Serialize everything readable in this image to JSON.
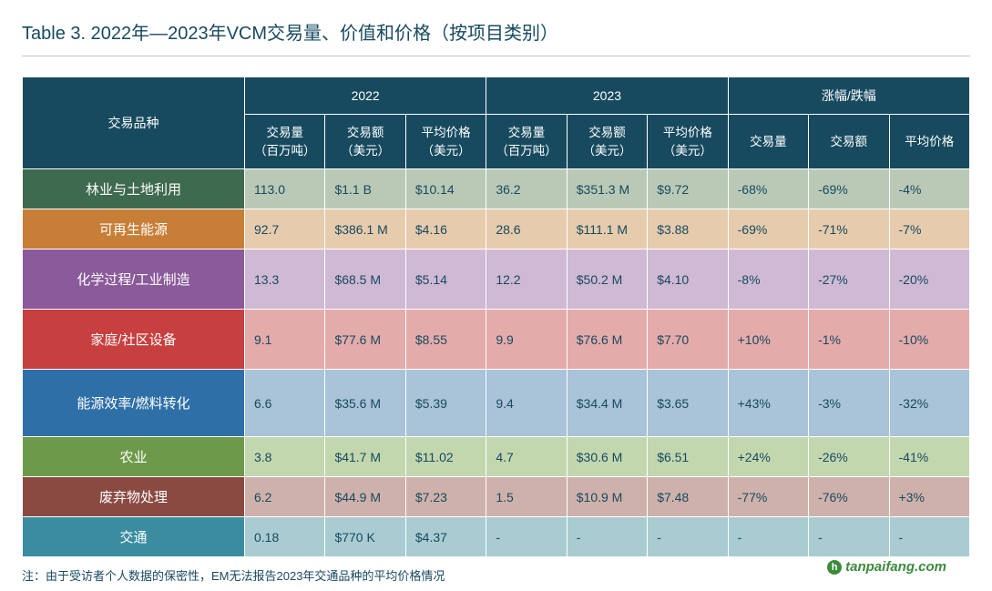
{
  "title": "Table 3. 2022年—2023年VCM交易量、价值和价格（按项目类别）",
  "header": {
    "groups": {
      "g2022": "2022",
      "g2023": "2023",
      "change": "涨幅/跌幅"
    },
    "category_label": "交易品种",
    "sub": {
      "vol_full": "交易量\n（百万吨）",
      "val_full": "交易额\n（美元）",
      "price_full": "平均价格\n（美元）",
      "vol": "交易量",
      "val": "交易额",
      "price": "平均价格"
    }
  },
  "rows": [
    {
      "cat": "林业与土地利用",
      "cat_bg": "#3e6a4f",
      "data_bg": "#b9c9b6",
      "height": "normal",
      "v22_vol": "113.0",
      "v22_val": "$1.1 B",
      "v22_price": "$10.14",
      "v23_vol": "36.2",
      "v23_val": "$351.3 M",
      "v23_price": "$9.72",
      "d_vol": "-68%",
      "d_val": "-69%",
      "d_price": "-4%"
    },
    {
      "cat": "可再生能源",
      "cat_bg": "#c77e36",
      "data_bg": "#e6cbad",
      "height": "normal",
      "v22_vol": "92.7",
      "v22_val": "$386.1 M",
      "v22_price": "$4.16",
      "v23_vol": "28.6",
      "v23_val": "$111.1 M",
      "v23_price": "$3.88",
      "d_vol": "-69%",
      "d_val": "-71%",
      "d_price": "-7%"
    },
    {
      "cat": "化学过程/工业制造",
      "cat_bg": "#8a5a9a",
      "data_bg": "#cfb9d4",
      "height": "tall",
      "v22_vol": "13.3",
      "v22_val": "$68.5 M",
      "v22_price": "$5.14",
      "v23_vol": "12.2",
      "v23_val": "$50.2 M",
      "v23_price": "$4.10",
      "d_vol": "-8%",
      "d_val": "-27%",
      "d_price": "-20%"
    },
    {
      "cat": "家庭/社区设备",
      "cat_bg": "#c73f3f",
      "data_bg": "#e4abab",
      "height": "tall",
      "v22_vol": "9.1",
      "v22_val": "$77.6 M",
      "v22_price": "$8.55",
      "v23_vol": "9.9",
      "v23_val": "$76.6 M",
      "v23_price": "$7.70",
      "d_vol": "+10%",
      "d_val": "-1%",
      "d_price": "-10%"
    },
    {
      "cat": "能源效率/燃料转化",
      "cat_bg": "#2f6fa8",
      "data_bg": "#a9c3d8",
      "height": "taller",
      "v22_vol": "6.6",
      "v22_val": "$35.6 M",
      "v22_price": "$5.39",
      "v23_vol": "9.4",
      "v23_val": "$34.4 M",
      "v23_price": "$3.65",
      "d_vol": "+43%",
      "d_val": "-3%",
      "d_price": "-32%"
    },
    {
      "cat": "农业",
      "cat_bg": "#6d9a4a",
      "data_bg": "#c3d7af",
      "height": "normal",
      "v22_vol": "3.8",
      "v22_val": "$41.7 M",
      "v22_price": "$11.02",
      "v23_vol": "4.7",
      "v23_val": "$30.6 M",
      "v23_price": "$6.51",
      "d_vol": "+24%",
      "d_val": "-26%",
      "d_price": "-41%"
    },
    {
      "cat": "废弃物处理",
      "cat_bg": "#8a4a42",
      "data_bg": "#cfb1ab",
      "height": "normal",
      "v22_vol": "6.2",
      "v22_val": "$44.9 M",
      "v22_price": "$7.23",
      "v23_vol": "1.5",
      "v23_val": "$10.9 M",
      "v23_price": "$7.48",
      "d_vol": "-77%",
      "d_val": "-76%",
      "d_price": "+3%"
    },
    {
      "cat": "交通",
      "cat_bg": "#3a8da0",
      "data_bg": "#a9ccd3",
      "height": "normal",
      "v22_vol": "0.18",
      "v22_val": "$770 K",
      "v22_price": "$4.37",
      "v23_vol": "-",
      "v23_val": "-",
      "v23_price": "-",
      "d_vol": "-",
      "d_val": "-",
      "d_price": "-"
    }
  ],
  "footnote": "注：由于受访者个人数据的保密性，EM无法报告2023年交通品种的平均价格情况",
  "watermark": "tanpaifang.com",
  "colors": {
    "header_bg": "#174a5f",
    "text": "#174a5f",
    "rule": "#bcc7cc"
  },
  "table_type": "table"
}
